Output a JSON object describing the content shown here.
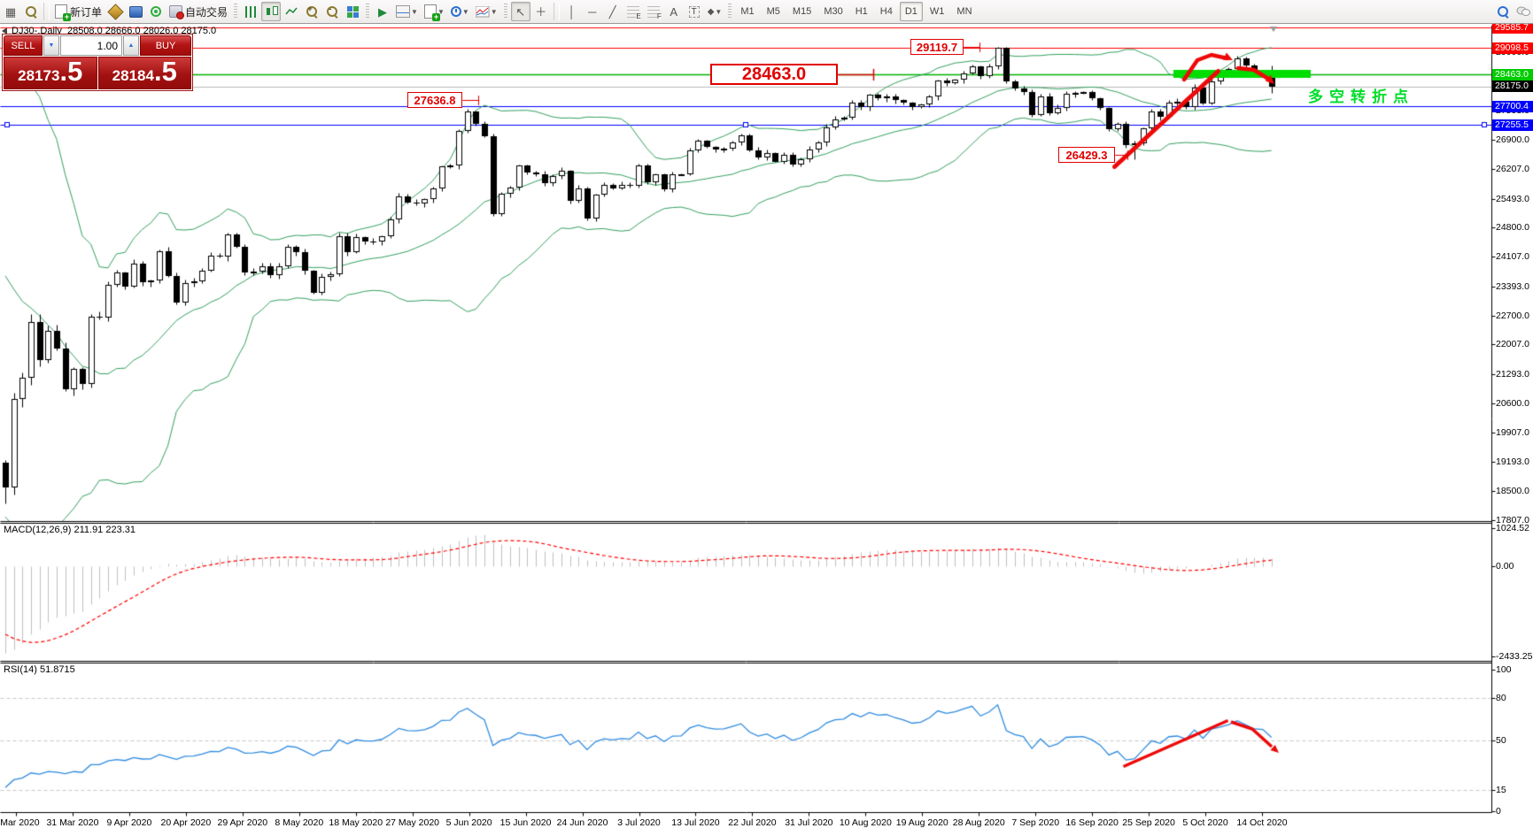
{
  "toolbar": {
    "new_order_label": "新订单",
    "auto_trading_label": "自动交易",
    "timeframes": [
      "M1",
      "M5",
      "M15",
      "M30",
      "H1",
      "H4",
      "D1",
      "W1",
      "MN"
    ],
    "active_timeframe": "D1",
    "drawing_tools": {
      "vertical_line": "│",
      "horizontal_line": "─",
      "trend_line": "╱",
      "text": "A",
      "label": "T",
      "fib_e": "E",
      "fib_f": "F",
      "cursor": "↖",
      "crosshair": "+"
    }
  },
  "chart_header": {
    "title_line": "DJ30-,Daily  28508.0 28666.0 28026.0 28175.0",
    "symbol": "DJ30-",
    "period": "Daily"
  },
  "trade_panel": {
    "sell_label": "SELL",
    "buy_label": "BUY",
    "volume": "1.00",
    "sell_price_small": "28173",
    "sell_price_big": ".5",
    "buy_price_small": "28184",
    "buy_price_big": ".5"
  },
  "price_axis": {
    "ticks": [
      "29693.0",
      "29000.0",
      "28307.0",
      "27593.0",
      "26900.0",
      "26207.0",
      "25493.0",
      "24800.0",
      "24107.0",
      "23393.0",
      "22700.0",
      "22007.0",
      "21293.0",
      "20600.0",
      "19907.0",
      "19193.0",
      "18500.0",
      "17807.0"
    ],
    "badges": [
      {
        "label": "29585.7",
        "bg": "#ff0000",
        "fg": "#ffffff"
      },
      {
        "label": "29098.5",
        "bg": "#ff0000",
        "fg": "#ffffff"
      },
      {
        "label": "28463.0",
        "bg": "#00cc00",
        "fg": "#ffffff"
      },
      {
        "label": "28175.0",
        "bg": "#000000",
        "fg": "#ffffff"
      },
      {
        "label": "27700.4",
        "bg": "#0000ff",
        "fg": "#ffffff"
      },
      {
        "label": "27255.5",
        "bg": "#0000ff",
        "fg": "#ffffff"
      }
    ]
  },
  "hlines": [
    {
      "price": 29585.7,
      "color": "#ff0000",
      "selected": false
    },
    {
      "price": 29098.5,
      "color": "#ff0000",
      "selected": false
    },
    {
      "price": 28463.0,
      "color": "#00b300",
      "selected": false
    },
    {
      "price": 28175.0,
      "color": "#b8b8b8",
      "selected": false
    },
    {
      "price": 27700.4,
      "color": "#0000ff",
      "selected": false
    },
    {
      "price": 27255.5,
      "color": "#0000ff",
      "selected": true
    }
  ],
  "callouts": [
    {
      "text": "27636.8"
    },
    {
      "text": "28463.0"
    },
    {
      "text": "29119.7"
    },
    {
      "text": "26429.3"
    }
  ],
  "annotation_text": {
    "label": "多空转折点",
    "color": "#00dd2a"
  },
  "macd_pane": {
    "label": "MACD(12,26,9) 211.91 223.31",
    "scale": [
      "1024.52",
      "0.00",
      "-2433.25"
    ]
  },
  "rsi_pane": {
    "label": "RSI(14) 51.8715",
    "scale": [
      "100",
      "80",
      "50",
      "15",
      "0"
    ],
    "dashed_levels": [
      80,
      50,
      15
    ]
  },
  "date_axis": {
    "labels": [
      "2 Mar 2020",
      "31 Mar 2020",
      "9 Apr 2020",
      "20 Apr 2020",
      "29 Apr 2020",
      "8 May 2020",
      "18 May 2020",
      "27 May 2020",
      "5 Jun 2020",
      "15 Jun 2020",
      "24 Jun 2020",
      "3 Jul 2020",
      "13 Jul 2020",
      "22 Jul 2020",
      "31 Jul 2020",
      "10 Aug 2020",
      "19 Aug 2020",
      "28 Aug 2020",
      "7 Sep 2020",
      "16 Sep 2020",
      "25 Sep 2020",
      "5 Oct 2020",
      "14 Oct 2020"
    ]
  },
  "chart_data": {
    "type": "candlestick",
    "symbol": "DJ30-",
    "period": "Daily",
    "title": "DJ30-,Daily",
    "last_bar_ohlc": {
      "open": 28508.0,
      "high": 28666.0,
      "low": 28026.0,
      "close": 28175.0
    },
    "price_axis_range": [
      17807.0,
      29693.0
    ],
    "warmup_closes": [
      29276,
      29398,
      29551,
      29423,
      29398,
      29398,
      29232,
      29348,
      28992,
      28800,
      27960,
      27081,
      26957,
      25766,
      25409,
      26703,
      25917,
      27090,
      26121,
      25864,
      23851,
      25018,
      23553,
      21200,
      23185,
      20188,
      21237,
      19898,
      20087,
      19173
    ],
    "closes": [
      18591,
      20704,
      21200,
      22552,
      21636,
      22327,
      21917,
      20943,
      21413,
      21052,
      22679,
      22653,
      23433,
      23719,
      23390,
      23949,
      23504,
      23537,
      24242,
      23650,
      23018,
      23475,
      23515,
      23775,
      24133,
      24101,
      24633,
      24345,
      23723,
      23749,
      23883,
      23664,
      23875,
      24331,
      24221,
      23764,
      23247,
      23625,
      23685,
      24597,
      24206,
      24575,
      24474,
      24465,
      24600,
      24995,
      25548,
      25400,
      25383,
      25475,
      25742,
      26269,
      26281,
      27110,
      27572,
      27272,
      26989,
      25128,
      25605,
      25763,
      26289,
      26119,
      26080,
      25871,
      26024,
      26156,
      25445,
      25745,
      25015,
      25595,
      25812,
      25734,
      25827,
      25800,
      26286,
      25890,
      26067,
      25706,
      26075,
      26085,
      26642,
      26870,
      26734,
      26671,
      26680,
      26840,
      27005,
      26652,
      26469,
      26584,
      26379,
      26539,
      26313,
      26428,
      26664,
      26828,
      27201,
      27386,
      27433,
      27791,
      27686,
      27976,
      27896,
      27931,
      27844,
      27778,
      27692,
      27739,
      27930,
      28308,
      28248,
      28331,
      28492,
      28653,
      28430,
      28645,
      29100,
      28292,
      28133,
      28050,
      27500,
      27940,
      27534,
      27665,
      27993,
      28015,
      28032,
      27901,
      27657,
      27147,
      27288,
      26763,
      26815,
      27174,
      27584,
      27452,
      27781,
      27816,
      27682,
      28148,
      27772,
      28303,
      28425,
      28586,
      28837,
      28679,
      28514,
      28494,
      28175
    ],
    "bar_overrides": {
      "0": {
        "low": 18213
      },
      "54": {
        "high": 27636.8
      },
      "116": {
        "high": 29119.7
      },
      "132": {
        "low": 26429.3
      },
      "148": {
        "open": 28508.0,
        "high": 28666.0,
        "low": 28026.0,
        "close": 28175.0
      }
    },
    "indicators": {
      "bollinger": {
        "period": 20,
        "deviation": 2,
        "color": "#33a05f"
      },
      "macd": {
        "fast": 12,
        "slow": 26,
        "signal": 9,
        "values_label": [
          211.91,
          223.31
        ],
        "histogram_color": "#c0c0c0",
        "signal_color": "#ff0000",
        "scale": [
          1024.52,
          0.0,
          -2433.25
        ]
      },
      "rsi": {
        "period": 14,
        "value_label": 51.8715,
        "color": "#2f8be0",
        "scale": [
          0,
          100
        ],
        "levels": [
          80,
          50,
          15
        ]
      }
    },
    "annotations": {
      "resistance_bar": {
        "price": 28463.0,
        "color": "#00dd00"
      },
      "trend_arrows": "red rally line from 26429.3 low with reversal arrows at 28463 zone",
      "rsi_arrows": "red rise-then-fall arrows on RSI"
    }
  }
}
